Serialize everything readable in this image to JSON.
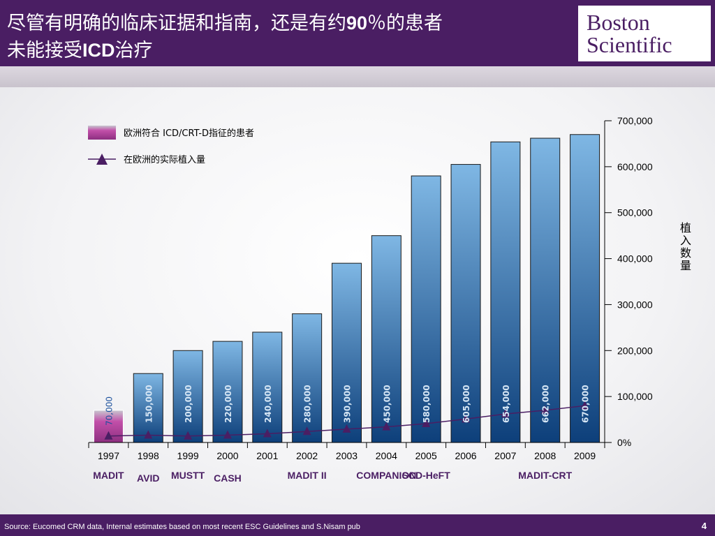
{
  "slide": {
    "title_line1_a": "尽管有明确的临床证据和指南，还是有约",
    "title_line1_b": "90",
    "title_line1_c": "％的患者",
    "title_line2_a": "未能接受",
    "title_line2_b": "ICD",
    "title_line2_c": "治疗",
    "logo_line1": "Boston",
    "logo_line2": "Scientific",
    "source": "Source: Eucomed CRM data, Internal estimates based on most recent ESC Guidelines and S.Nisam pub",
    "page_number": "4"
  },
  "colors": {
    "brand_purple": "#4a1e63",
    "bar_blue_top": "#7fb7e4",
    "bar_blue_bottom": "#0d3f7a",
    "bar_magenta": "#b0409a",
    "line_color": "#4a1e63"
  },
  "chart_data": {
    "type": "bar",
    "categories": [
      "1997",
      "1998",
      "1999",
      "2000",
      "2001",
      "2002",
      "2003",
      "2004",
      "2005",
      "2006",
      "2007",
      "2008",
      "2009"
    ],
    "series": [
      {
        "name": "欧洲符合 ICD/CRT-D指征的患者",
        "type": "bar",
        "values": [
          70000,
          150000,
          200000,
          220000,
          240000,
          280000,
          390000,
          450000,
          580000,
          605000,
          654000,
          662000,
          670000
        ],
        "data_labels": [
          "70,000",
          "150,000",
          "200,000",
          "220,000",
          "240,000",
          "280,000",
          "390,000",
          "450,000",
          "580,000",
          "605,000",
          "654,000",
          "662,000",
          "670,000"
        ]
      },
      {
        "name": "在欧洲的实际植入量",
        "type": "line",
        "marker": "triangle",
        "values": [
          14000,
          16000,
          14000,
          16000,
          19000,
          24000,
          29000,
          34000,
          41000,
          51000,
          62000,
          70000,
          80000
        ]
      }
    ],
    "y_axis": {
      "position": "right",
      "label": "植入数量",
      "range": [
        0,
        700000
      ],
      "ticks": [
        0,
        100000,
        200000,
        300000,
        400000,
        500000,
        600000,
        700000
      ],
      "tick_labels": [
        "0%",
        "100,000",
        "200,000",
        "300,000",
        "400,000",
        "500,000",
        "600,000",
        "700,000"
      ]
    },
    "trials": [
      {
        "name": "MADIT",
        "year": "1997",
        "row": 0
      },
      {
        "name": "AVID",
        "year": "1998",
        "row": 1
      },
      {
        "name": "MUSTT",
        "year": "1999",
        "row": 0
      },
      {
        "name": "CASH",
        "year": "2000",
        "row": 1
      },
      {
        "name": "MADIT II",
        "year": "2002",
        "row": 0
      },
      {
        "name": "COMPANION",
        "year": "2004",
        "row": 0
      },
      {
        "name": "SCD-HeFT",
        "year": "2005",
        "row": 0
      },
      {
        "name": "MADIT-CRT",
        "year": "2008",
        "row": 0
      }
    ],
    "legend_position": "top-left",
    "grid": false
  }
}
